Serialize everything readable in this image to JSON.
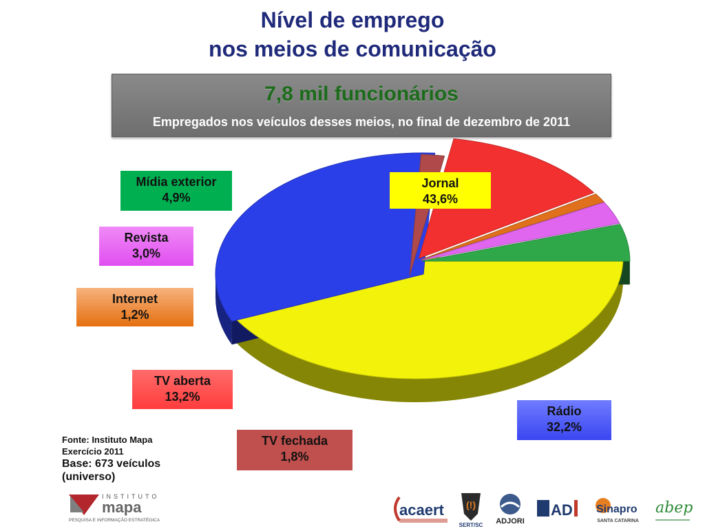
{
  "title_line1": "Nível de emprego",
  "title_line2": "nos meios de comunicação",
  "banner": {
    "headline": "7,8 mil funcionários",
    "subtitle": "Empregados nos veículos desses meios, no final de dezembro de 2011"
  },
  "chart_data": {
    "type": "pie",
    "title": "",
    "slices": [
      {
        "name": "Jornal",
        "value": 43.6,
        "label": "43,6%",
        "color": "#f2f20a"
      },
      {
        "name": "Rádio",
        "value": 32.2,
        "label": "32,2%",
        "color": "#2a3fe8"
      },
      {
        "name": "TV fechada",
        "value": 1.8,
        "label": "1,8%",
        "color": "#b04a4a"
      },
      {
        "name": "TV aberta",
        "value": 13.2,
        "label": "13,2%",
        "color": "#f23030"
      },
      {
        "name": "Internet",
        "value": 1.2,
        "label": "1,2%",
        "color": "#e0701c"
      },
      {
        "name": "Revista",
        "value": 3.0,
        "label": "3,0%",
        "color": "#e066f0"
      },
      {
        "name": "Mídia exterior",
        "value": 4.9,
        "label": "4,9%",
        "color": "#2fa84a"
      }
    ]
  },
  "footer": {
    "source": "Fonte: Instituto Mapa",
    "exercise": "Exercício 2011",
    "base_line1": "Base: 673 veículos",
    "base_line2": "(universo)"
  },
  "logos": {
    "mapa_top": "INSTITUTO",
    "mapa_name": "mapa",
    "mapa_tagline": "PESQUISA E INFORMAÇÃO ESTRATÉGICA",
    "acaert": "acaert",
    "sert": "SERT/SC",
    "adjori": "ADJORI",
    "adi": "AD",
    "sinapro": "Sinapro",
    "sinapro_sub": "SANTA CATARINA",
    "abep": "abep"
  }
}
